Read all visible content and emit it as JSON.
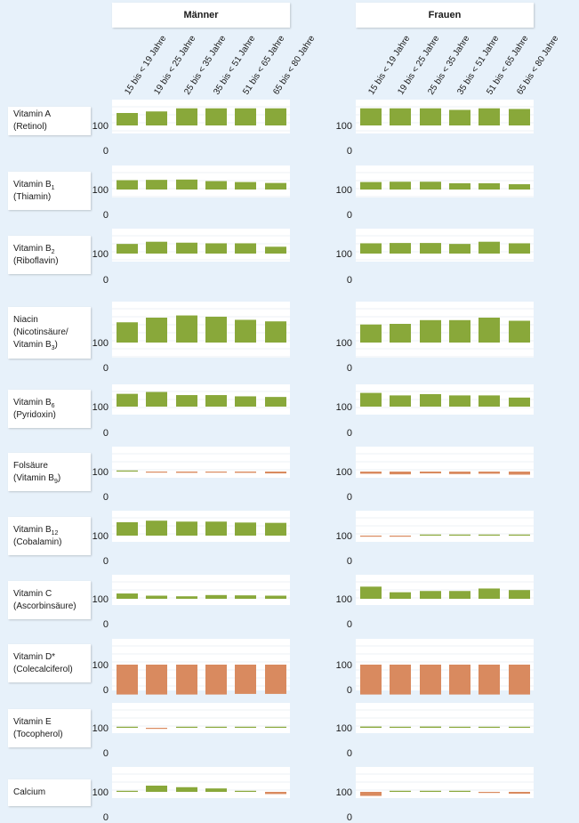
{
  "headers": {
    "men": "Männer",
    "women": "Frauen"
  },
  "colors": {
    "above": "#89a83a",
    "below": "#d98a5f",
    "panel": "#ffffff",
    "grid": "#eef1f4",
    "tick_text": "#1a1a1a"
  },
  "chart_data": {
    "type": "bar",
    "categories": [
      "15 bis < 19 Jahre",
      "19 bis < 25 Jahre",
      "25 bis < 35 Jahre",
      "35 bis < 51 Jahre",
      "51 bis < 65 Jahre",
      "65 bis < 80 Jahre"
    ],
    "reference_value": 100,
    "y_tick_labels": [
      "100",
      "0"
    ],
    "groups": [
      "Männer",
      "Frauen"
    ],
    "nutrients": [
      {
        "label_lines": [
          [
            "Vitamin A"
          ],
          [
            "(Retinol)"
          ]
        ],
        "men": [
          140,
          145,
          155,
          155,
          155,
          155
        ],
        "women": [
          155,
          155,
          155,
          150,
          155,
          153
        ]
      },
      {
        "label_lines": [
          [
            "Vitamin B",
            "1"
          ],
          [
            "(Thiamin)"
          ]
        ],
        "men": [
          130,
          131,
          132,
          127,
          124,
          121
        ],
        "women": [
          124,
          125,
          125,
          120,
          120,
          117
        ]
      },
      {
        "label_lines": [
          [
            "Vitamin B",
            "2"
          ],
          [
            "(Riboflavin)"
          ]
        ],
        "men": [
          131,
          138,
          135,
          133,
          133,
          122
        ],
        "women": [
          133,
          134,
          134,
          131,
          138,
          133
        ]
      },
      {
        "label_lines": [
          [
            "Niacin"
          ],
          [
            "(Nicotinsäure/"
          ],
          [
            "Vitamin B",
            "3",
            ")"
          ]
        ],
        "men": [
          165,
          180,
          187,
          183,
          173,
          168
        ],
        "women": [
          158,
          160,
          172,
          172,
          180,
          170
        ]
      },
      {
        "label_lines": [
          [
            "Vitamin B",
            "6"
          ],
          [
            "(Pyridoxin)"
          ]
        ],
        "men": [
          141,
          147,
          137,
          137,
          133,
          131
        ],
        "women": [
          144,
          136,
          140,
          136,
          136,
          129
        ]
      },
      {
        "label_lines": [
          [
            "Folsäure"
          ],
          [
            "(Vitamin B",
            "9",
            ")"
          ]
        ],
        "men": [
          102,
          99,
          96,
          98,
          96,
          94
        ],
        "women": [
          93,
          91,
          94,
          92,
          93,
          90
        ]
      },
      {
        "label_lines": [
          [
            "Vitamin B",
            "12"
          ],
          [
            "(Cobalamin)"
          ]
        ],
        "men": [
          143,
          148,
          145,
          145,
          142,
          141
        ],
        "women": [
          97,
          97,
          100,
          100,
          102,
          100
        ]
      },
      {
        "label_lines": [
          [
            "Vitamin C"
          ],
          [
            "(Ascorbinsäure)"
          ]
        ],
        "men": [
          117,
          110,
          108,
          112,
          111,
          110
        ],
        "women": [
          139,
          121,
          125,
          125,
          133,
          128
        ]
      },
      {
        "label_lines": [
          [
            "Vitamin D*"
          ],
          [
            "(Colecalciferol)"
          ]
        ],
        "men": [
          4,
          4,
          4,
          4,
          6,
          6
        ],
        "women": [
          4,
          4,
          4,
          4,
          4,
          4
        ]
      },
      {
        "label_lines": [
          [
            "Vitamin E"
          ],
          [
            "(Tocopherol)"
          ]
        ],
        "men": [
          103,
          98,
          102,
          100,
          102,
          102
        ],
        "women": [
          104,
          100,
          104,
          100,
          100,
          102
        ]
      },
      {
        "label_lines": [
          [
            "Calcium"
          ]
        ],
        "men": [
          100,
          120,
          115,
          111,
          100,
          93
        ],
        "women": [
          87,
          100,
          100,
          102,
          98,
          94
        ]
      }
    ]
  }
}
